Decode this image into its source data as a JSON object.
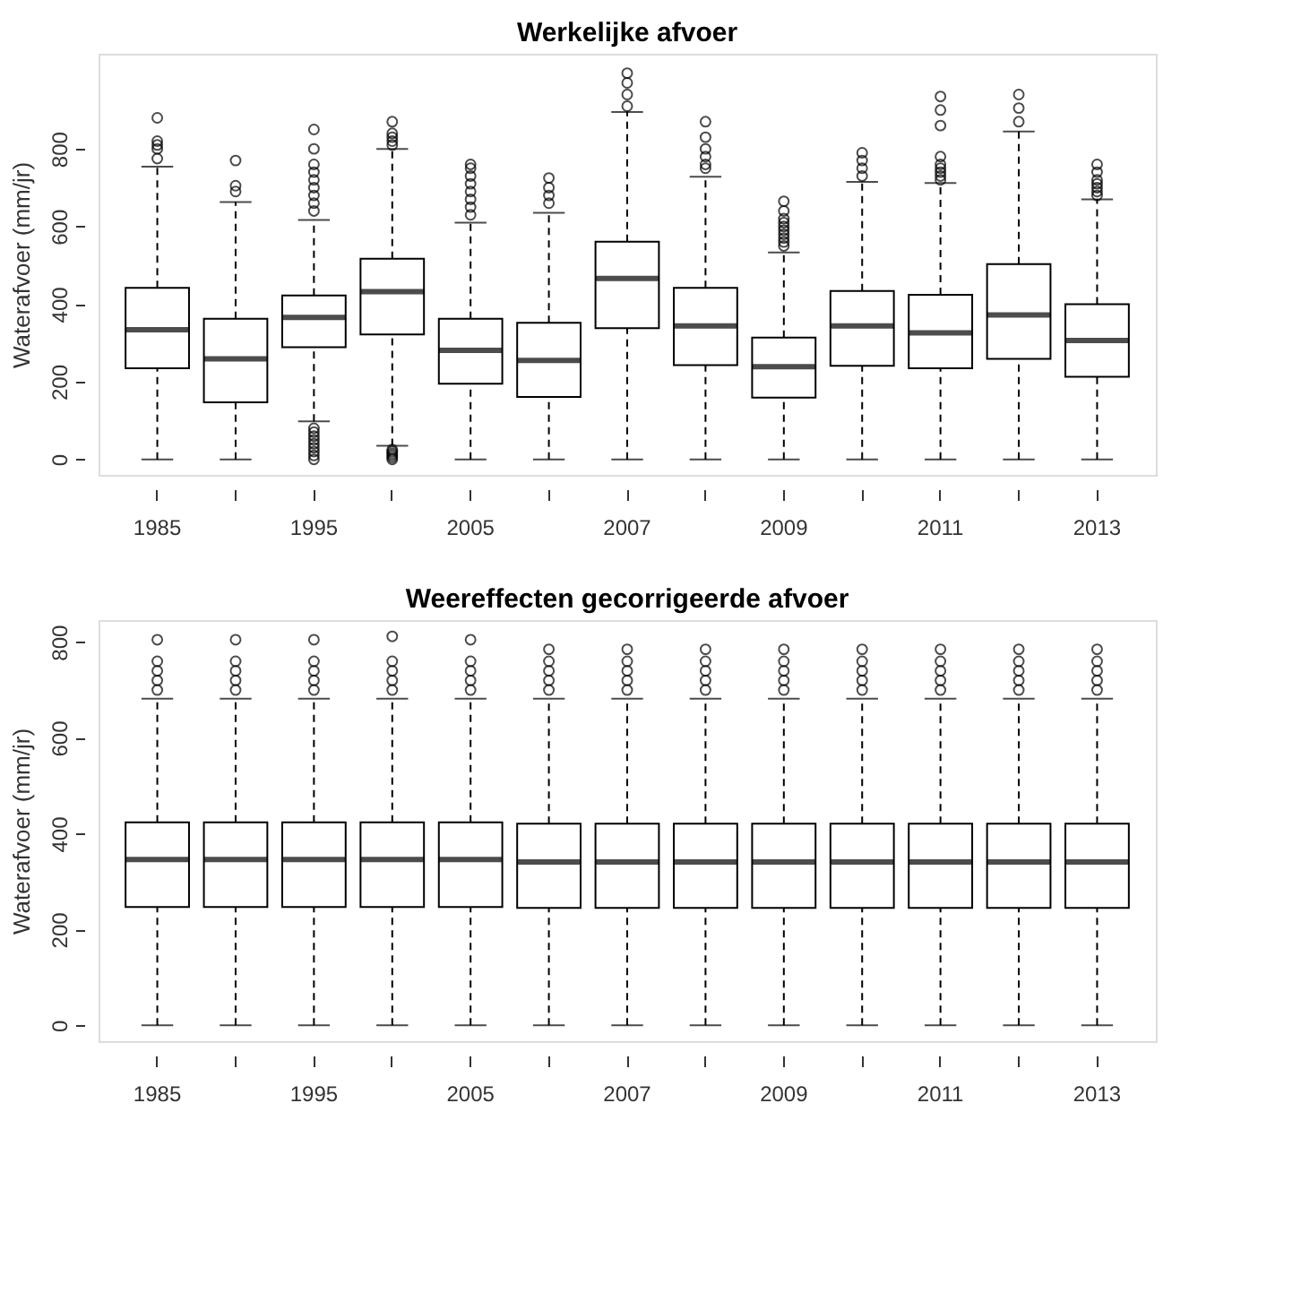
{
  "chart_data": [
    {
      "type": "box",
      "title": "Werkelijke afvoer",
      "ylabel": "Waterafvoer (mm/jr)",
      "categories": [
        "1985",
        null,
        "1995",
        null,
        "2005",
        null,
        "2007",
        null,
        "2009",
        null,
        "2011",
        null,
        "2013"
      ],
      "ylim": [
        -40,
        1045
      ],
      "yticks": [
        0,
        200,
        400,
        600,
        800
      ],
      "grid": false,
      "line_style": "dashed",
      "marker": "circle",
      "boxes": [
        {
          "low": 0,
          "q1": 235,
          "median": 334,
          "q3": 442,
          "high": 754,
          "outliers": [
            775,
            800,
            810,
            820,
            880
          ]
        },
        {
          "low": 0,
          "q1": 147,
          "median": 259,
          "q3": 362,
          "high": 663,
          "outliers": [
            690,
            705,
            770
          ]
        },
        {
          "low": 98,
          "q1": 289,
          "median": 366,
          "q3": 422,
          "high": 617,
          "outliers": [
            640,
            660,
            680,
            700,
            720,
            740,
            760,
            800,
            850,
            0,
            10,
            20,
            30,
            40,
            50,
            60,
            70,
            80
          ]
        },
        {
          "low": 35,
          "q1": 322,
          "median": 432,
          "q3": 517,
          "high": 800,
          "outliers": [
            810,
            820,
            830,
            840,
            870,
            0,
            5,
            10,
            15,
            20,
            25
          ]
        },
        {
          "low": 0,
          "q1": 195,
          "median": 281,
          "q3": 362,
          "high": 610,
          "outliers": [
            630,
            650,
            670,
            690,
            710,
            730,
            750,
            760
          ]
        },
        {
          "low": 0,
          "q1": 161,
          "median": 255,
          "q3": 352,
          "high": 635,
          "outliers": [
            660,
            680,
            700,
            725
          ]
        },
        {
          "low": 0,
          "q1": 338,
          "median": 466,
          "q3": 561,
          "high": 895,
          "outliers": [
            910,
            940,
            970,
            995
          ]
        },
        {
          "low": 0,
          "q1": 243,
          "median": 344,
          "q3": 442,
          "high": 728,
          "outliers": [
            750,
            760,
            780,
            800,
            830,
            870
          ]
        },
        {
          "low": 0,
          "q1": 159,
          "median": 239,
          "q3": 314,
          "high": 533,
          "outliers": [
            550,
            560,
            570,
            580,
            590,
            600,
            610,
            620,
            640,
            665
          ]
        },
        {
          "low": 0,
          "q1": 241,
          "median": 344,
          "q3": 434,
          "high": 715,
          "outliers": [
            730,
            750,
            770,
            790
          ]
        },
        {
          "low": 0,
          "q1": 235,
          "median": 326,
          "q3": 424,
          "high": 712,
          "outliers": [
            720,
            730,
            740,
            750,
            760,
            780,
            860,
            900,
            935
          ]
        },
        {
          "low": 0,
          "q1": 259,
          "median": 372,
          "q3": 503,
          "high": 845,
          "outliers": [
            870,
            905,
            940
          ]
        },
        {
          "low": 0,
          "q1": 213,
          "median": 306,
          "q3": 400,
          "high": 670,
          "outliers": [
            680,
            690,
            700,
            710,
            720,
            740,
            760
          ]
        }
      ]
    },
    {
      "type": "box",
      "title": "Weereffecten gecorrigeerde afvoer",
      "ylabel": "Waterafvoer (mm/jr)",
      "categories": [
        "1985",
        null,
        "1995",
        null,
        "2005",
        null,
        "2007",
        null,
        "2009",
        null,
        "2011",
        null,
        "2013"
      ],
      "ylim": [
        -33,
        846
      ],
      "yticks": [
        0,
        200,
        400,
        600,
        800
      ],
      "grid": false,
      "line_style": "dashed",
      "marker": "circle",
      "boxes": [
        {
          "low": 0,
          "q1": 247,
          "median": 346,
          "q3": 424,
          "high": 682,
          "outliers": [
            700,
            720,
            740,
            760,
            805
          ]
        },
        {
          "low": 0,
          "q1": 247,
          "median": 346,
          "q3": 424,
          "high": 682,
          "outliers": [
            700,
            720,
            740,
            760,
            805
          ]
        },
        {
          "low": 0,
          "q1": 247,
          "median": 346,
          "q3": 424,
          "high": 682,
          "outliers": [
            700,
            720,
            740,
            760,
            805
          ]
        },
        {
          "low": 0,
          "q1": 247,
          "median": 346,
          "q3": 424,
          "high": 682,
          "outliers": [
            700,
            720,
            740,
            760,
            812
          ]
        },
        {
          "low": 0,
          "q1": 247,
          "median": 346,
          "q3": 424,
          "high": 682,
          "outliers": [
            700,
            720,
            740,
            760,
            805
          ]
        },
        {
          "low": 0,
          "q1": 245,
          "median": 341,
          "q3": 421,
          "high": 682,
          "outliers": [
            700,
            720,
            740,
            760,
            785
          ]
        },
        {
          "low": 0,
          "q1": 245,
          "median": 341,
          "q3": 421,
          "high": 682,
          "outliers": [
            700,
            720,
            740,
            760,
            785
          ]
        },
        {
          "low": 0,
          "q1": 245,
          "median": 341,
          "q3": 421,
          "high": 682,
          "outliers": [
            700,
            720,
            740,
            760,
            785
          ]
        },
        {
          "low": 0,
          "q1": 245,
          "median": 341,
          "q3": 421,
          "high": 682,
          "outliers": [
            700,
            720,
            740,
            760,
            785
          ]
        },
        {
          "low": 0,
          "q1": 245,
          "median": 341,
          "q3": 421,
          "high": 682,
          "outliers": [
            700,
            720,
            740,
            760,
            785
          ]
        },
        {
          "low": 0,
          "q1": 245,
          "median": 341,
          "q3": 421,
          "high": 682,
          "outliers": [
            700,
            720,
            740,
            760,
            785
          ]
        },
        {
          "low": 0,
          "q1": 245,
          "median": 341,
          "q3": 421,
          "high": 682,
          "outliers": [
            700,
            720,
            740,
            760,
            785
          ]
        },
        {
          "low": 0,
          "q1": 245,
          "median": 341,
          "q3": 421,
          "high": 682,
          "outliers": [
            700,
            720,
            740,
            760,
            785
          ]
        }
      ]
    }
  ]
}
